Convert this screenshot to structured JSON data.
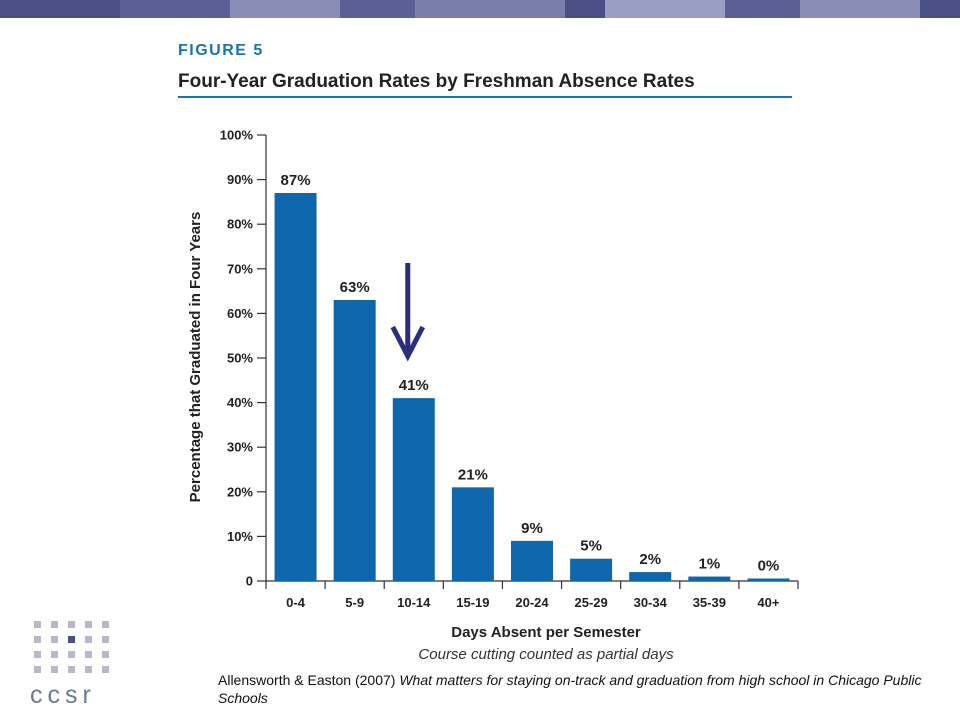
{
  "header": {
    "figure_label": "FIGURE 5",
    "title": "Four-Year Graduation Rates by Freshman Absence Rates"
  },
  "chart_data": {
    "type": "bar",
    "categories": [
      "0-4",
      "5-9",
      "10-14",
      "15-19",
      "20-24",
      "25-29",
      "30-34",
      "35-39",
      "40+"
    ],
    "values": [
      87,
      63,
      41,
      21,
      9,
      5,
      2,
      1,
      0
    ],
    "value_labels": [
      "87%",
      "63%",
      "41%",
      "21%",
      "9%",
      "5%",
      "2%",
      "1%",
      "0%"
    ],
    "xlabel": "Days Absent per Semester",
    "xlabel_note": "Course cutting counted as partial days",
    "ylabel": "Percentage that Graduated in Four Years",
    "ylim": [
      0,
      100
    ],
    "yticks": [
      0,
      10,
      20,
      30,
      40,
      50,
      60,
      70,
      80,
      90,
      100
    ],
    "ytick_labels": [
      "0",
      "10%",
      "20%",
      "30%",
      "40%",
      "50%",
      "60%",
      "70%",
      "80%",
      "90%",
      "100%"
    ],
    "bar_color": "#0e66ad",
    "arrow_color": "#2b2e7e",
    "arrow_points_to": "10-14"
  },
  "logo": {
    "text": "ccsr",
    "dot_color": "#b8b8c8",
    "accent_color": "#4a4f8c"
  },
  "citation": {
    "authors": "Allensworth & Easton (2007) ",
    "work": "What matters for staying on-track and graduation from high school in Chicago Public Schools"
  },
  "colors": {
    "topbar": [
      "#4a4f86",
      "#5a5f96",
      "#8a8eb6",
      "#5a5f96",
      "#7a7eab",
      "#4a4f86",
      "#9a9ec2",
      "#5a5f96",
      "#8a8eb6",
      "#4a4f86"
    ],
    "accent": "#1a73b8"
  }
}
